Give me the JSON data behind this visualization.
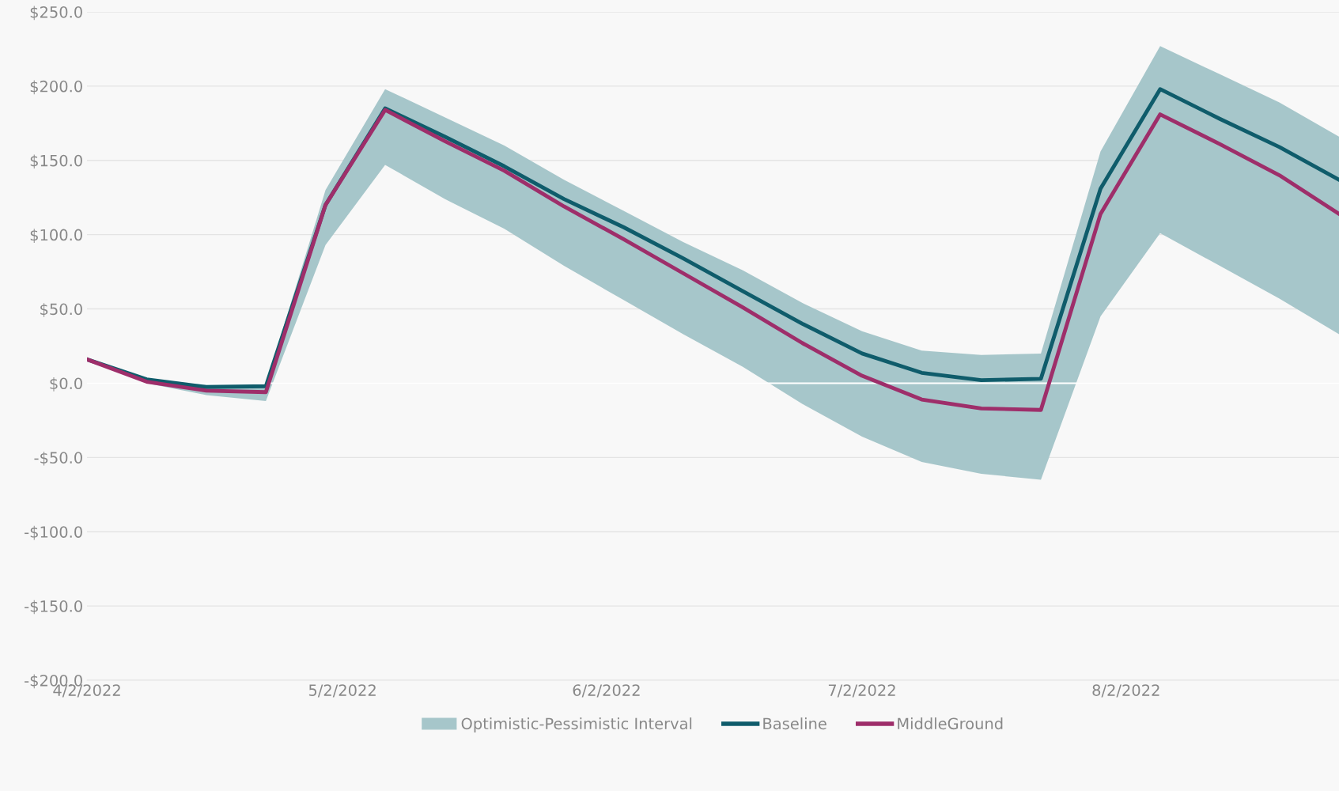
{
  "chart_data": {
    "type": "line",
    "x": [
      "2022-04-02",
      "2022-04-09",
      "2022-04-16",
      "2022-04-23",
      "2022-04-30",
      "2022-05-07",
      "2022-05-14",
      "2022-05-21",
      "2022-05-28",
      "2022-06-04",
      "2022-06-11",
      "2022-06-18",
      "2022-06-25",
      "2022-07-02",
      "2022-07-09",
      "2022-07-16",
      "2022-07-23",
      "2022-07-30",
      "2022-08-06",
      "2022-08-13",
      "2022-08-20",
      "2022-08-27"
    ],
    "series": [
      {
        "name": "Optimistic-Pessimistic Interval",
        "type": "area",
        "color": "#a6c6ca",
        "lower": [
          16,
          0,
          -8,
          -12,
          93,
          147,
          124,
          104,
          79,
          56,
          33,
          11,
          -14,
          -36,
          -53,
          -61,
          -65,
          45,
          101,
          79,
          57,
          33
        ],
        "upper": [
          16,
          3,
          -1,
          -1,
          130,
          198,
          179,
          160,
          137,
          116,
          95,
          76,
          54,
          35,
          22,
          19,
          20,
          156,
          227,
          208,
          189,
          166
        ],
        "values": [
          null,
          null,
          null,
          null,
          null,
          null,
          null,
          null,
          null,
          null,
          null,
          null,
          null,
          null,
          null,
          null,
          null,
          null,
          null,
          null,
          null,
          null
        ]
      },
      {
        "name": "Baseline",
        "type": "line",
        "color": "#0f5c6b",
        "values": [
          16,
          2.6,
          -2.6,
          -2,
          120,
          185,
          166,
          146,
          124,
          105,
          84,
          62,
          40,
          20,
          7,
          2,
          3,
          131,
          198,
          178,
          159,
          137
        ]
      },
      {
        "name": "MiddleGround",
        "type": "line",
        "color": "#9e2e6a",
        "values": [
          16,
          1,
          -5,
          -6,
          120,
          184,
          163,
          143,
          119,
          97,
          74,
          51,
          27,
          5,
          -11,
          -17,
          -18,
          114,
          181,
          161,
          140,
          114
        ]
      }
    ],
    "xlim": [
      "2022-04-02",
      "2022-08-27"
    ],
    "xticks": [
      {
        "value": "2022-04-02",
        "label": "4/2/2022"
      },
      {
        "value": "2022-05-02",
        "label": "5/2/2022"
      },
      {
        "value": "2022-06-02",
        "label": "6/2/2022"
      },
      {
        "value": "2022-07-02",
        "label": "7/2/2022"
      },
      {
        "value": "2022-08-02",
        "label": "8/2/2022"
      }
    ],
    "ylim": [
      -200,
      250
    ],
    "yticks": [
      {
        "value": -200,
        "label": "-$200.0"
      },
      {
        "value": -150,
        "label": "-$150.0"
      },
      {
        "value": -100,
        "label": "-$100.0"
      },
      {
        "value": -50,
        "label": "-$50.0"
      },
      {
        "value": 0,
        "label": "$0.0"
      },
      {
        "value": 50,
        "label": "$50.0"
      },
      {
        "value": 100,
        "label": "$100.0"
      },
      {
        "value": 150,
        "label": "$150.0"
      },
      {
        "value": 200,
        "label": "$200.0"
      },
      {
        "value": 250,
        "label": "$250.0"
      }
    ],
    "grid": "y",
    "legend": "bottom",
    "line_style": "solid",
    "marker": "none"
  }
}
